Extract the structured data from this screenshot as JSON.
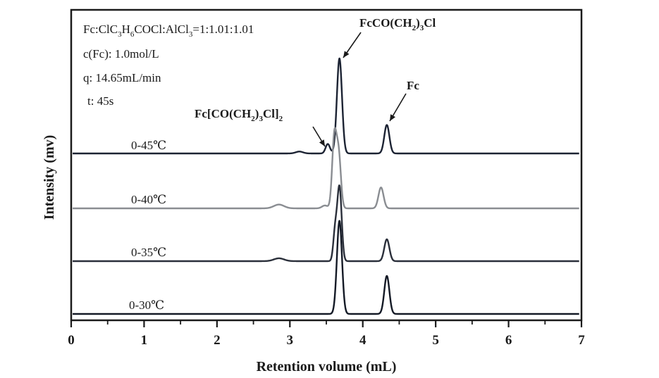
{
  "chart_data": {
    "type": "line",
    "title": "",
    "xlabel": "Retention volume (mL)",
    "ylabel": "Intensity (mv)",
    "xlim": [
      0,
      7
    ],
    "x_ticks": [
      "0",
      "1",
      "2",
      "3",
      "4",
      "5",
      "6",
      "7"
    ],
    "y_ticks": [],
    "grid": false,
    "conditions": {
      "ratio": {
        "prefix": "Fc:ClC",
        "sub1": "3",
        "mid1": "H",
        "sub2": "6",
        "mid2": "COCl:AlCl",
        "sub3": "3",
        "suffix": "=1:1.01:1.01"
      },
      "concentration": "c(Fc): 1.0mol/L",
      "flow": "q: 14.65mL/min",
      "time": "t: 45s"
    },
    "peak_labels": {
      "product": {
        "parts": [
          "FcCO(CH",
          "2",
          ")",
          "3",
          "Cl"
        ],
        "x": 3.68
      },
      "ferrocene": {
        "parts": [
          "Fc"
        ],
        "x": 4.33
      },
      "diacyl": {
        "parts": [
          "Fc[CO(CH",
          "2",
          ")",
          "3",
          "Cl]",
          "2"
        ],
        "x": 3.52
      }
    },
    "series": [
      {
        "name": "0-45℃",
        "color": "#1c2333",
        "baseline": 0,
        "peaks": [
          {
            "x": 3.13,
            "height": 0.02,
            "width": 0.05
          },
          {
            "x": 3.52,
            "height": 0.1,
            "width": 0.03
          },
          {
            "x": 3.68,
            "height": 1.0,
            "width": 0.035
          },
          {
            "x": 4.33,
            "height": 0.3,
            "width": 0.035
          }
        ]
      },
      {
        "name": "0-40℃",
        "color": "#8a8d92",
        "baseline": 0,
        "peaks": [
          {
            "x": 2.85,
            "height": 0.04,
            "width": 0.07
          },
          {
            "x": 3.48,
            "height": 0.03,
            "width": 0.04
          },
          {
            "x": 3.61,
            "height": 0.75,
            "width": 0.03
          },
          {
            "x": 3.67,
            "height": 0.55,
            "width": 0.03
          },
          {
            "x": 4.25,
            "height": 0.22,
            "width": 0.035
          }
        ]
      },
      {
        "name": "0-35℃",
        "color": "#2a2f3a",
        "baseline": 0,
        "peaks": [
          {
            "x": 2.85,
            "height": 0.03,
            "width": 0.07
          },
          {
            "x": 3.62,
            "height": 0.3,
            "width": 0.025
          },
          {
            "x": 3.68,
            "height": 0.78,
            "width": 0.03
          },
          {
            "x": 4.33,
            "height": 0.23,
            "width": 0.035
          }
        ]
      },
      {
        "name": "0-30℃",
        "color": "#141a26",
        "baseline": 0,
        "peaks": [
          {
            "x": 3.68,
            "height": 0.98,
            "width": 0.035
          },
          {
            "x": 4.33,
            "height": 0.4,
            "width": 0.035
          }
        ]
      }
    ]
  }
}
